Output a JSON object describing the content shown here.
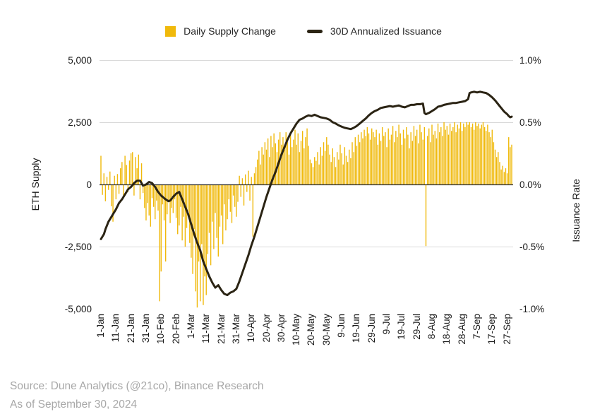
{
  "legend": {
    "bar_label": "Daily Supply Change",
    "line_label": "30D Annualized Issuance"
  },
  "left_axis": {
    "title": "ETH Supply",
    "ticks": [
      "5,000",
      "2,500",
      "0",
      "-2,500",
      "-5,000"
    ]
  },
  "right_axis": {
    "title": "Issuance Rate",
    "ticks": [
      "1.0%",
      "0.5%",
      "0.0%",
      "-0.5%",
      "-1.0%"
    ]
  },
  "footer": {
    "source": "Source: Dune Analytics (@21co), Binance Research",
    "as_of": "As of September 30, 2024"
  },
  "colors": {
    "bar": "#F0B90B",
    "line": "#2B2414",
    "grid": "#D9D9D9",
    "zero_line": "#333333",
    "axis_text": "#1A1A1A",
    "footer_text": "#A8A8A8"
  },
  "chart_data": {
    "type": "bar+line",
    "title": "",
    "xlabel": "",
    "left_ylabel": "ETH Supply",
    "right_ylabel": "Issuance Rate",
    "left_ylim": [
      -5000,
      5000
    ],
    "right_ylim": [
      -1.0,
      1.0
    ],
    "grid": true,
    "legend_position": "top-center",
    "x_tick_labels": [
      "1-Jan",
      "11-Jan",
      "21-Jan",
      "31-Jan",
      "10-Feb",
      "20-Feb",
      "1-Mar",
      "11-Mar",
      "21-Mar",
      "31-Mar",
      "10-Apr",
      "20-Apr",
      "30-Apr",
      "10-May",
      "20-May",
      "30-May",
      "9-Jun",
      "19-Jun",
      "29-Jun",
      "9-Jul",
      "19-Jul",
      "29-Jul",
      "8-Aug",
      "18-Aug",
      "28-Aug",
      "7-Sep",
      "17-Sep",
      "27-Sep"
    ],
    "x_tick_day_indices": [
      0,
      10,
      20,
      30,
      40,
      50,
      60,
      70,
      80,
      90,
      100,
      110,
      120,
      130,
      140,
      150,
      160,
      170,
      180,
      190,
      200,
      210,
      220,
      230,
      240,
      250,
      260,
      270
    ],
    "bar_series": {
      "name": "Daily Supply Change",
      "axis": "left",
      "unit": "ETH",
      "values": [
        1150,
        -420,
        450,
        -680,
        300,
        -220,
        520,
        -880,
        -1500,
        350,
        -600,
        420,
        -380,
        650,
        900,
        -520,
        1150,
        780,
        -300,
        960,
        1250,
        1300,
        -450,
        1100,
        650,
        1200,
        -600,
        850,
        -350,
        -950,
        -1450,
        -750,
        -1250,
        -1700,
        -550,
        -900,
        -1400,
        -650,
        -1050,
        -4700,
        -3500,
        -800,
        -1450,
        -3100,
        -1200,
        -700,
        -1550,
        -950,
        -1150,
        -600,
        -1350,
        -2000,
        -1650,
        -900,
        -2250,
        -1300,
        -2500,
        -1750,
        -1100,
        -2350,
        -2950,
        -3600,
        -1800,
        -4300,
        -4950,
        -3100,
        -4700,
        -2400,
        -4850,
        -3700,
        -4450,
        -2800,
        -1950,
        -3250,
        -1500,
        -2600,
        -1150,
        -2150,
        -2900,
        -1700,
        -1250,
        -2400,
        -800,
        -1850,
        -1400,
        -600,
        -1100,
        -1550,
        -450,
        -900,
        -1300,
        -700,
        350,
        -500,
        250,
        -850,
        400,
        -300,
        550,
        -650,
        300,
        -2100,
        450,
        700,
        1000,
        1350,
        800,
        1500,
        1200,
        1700,
        1400,
        1850,
        1100,
        1950,
        1500,
        2050,
        1650,
        1300,
        1800,
        2100,
        1600,
        1900,
        1400,
        2100,
        1700,
        1200,
        2000,
        1500,
        1800,
        2200,
        1600,
        2050,
        1300,
        1750,
        2150,
        1450,
        1900,
        2250,
        1550,
        1000,
        850,
        700,
        1100,
        950,
        1300,
        800,
        1500,
        1150,
        1700,
        1350,
        1900,
        1600,
        1200,
        900,
        1450,
        1100,
        700,
        1300,
        1000,
        1600,
        1250,
        800,
        1500,
        1150,
        900,
        1400,
        1050,
        1700,
        1300,
        1900,
        1550,
        2000,
        1700,
        2100,
        1850,
        2200,
        1950,
        2300,
        2050,
        1800,
        2250,
        2100,
        1900,
        2200,
        1600,
        2050,
        1750,
        2300,
        1950,
        2100,
        1500,
        2250,
        1800,
        2000,
        2350,
        1700,
        2150,
        1900,
        2400,
        2050,
        1600,
        2200,
        1850,
        2300,
        2000,
        1450,
        2100,
        1750,
        2350,
        1950,
        2200,
        1650,
        2400,
        2100,
        1800,
        2300,
        -2480,
        1950,
        2250,
        1700,
        2400,
        2000,
        2150,
        1850,
        2450,
        2100,
        2300,
        1950,
        2500,
        2200,
        2350,
        2000,
        2450,
        2150,
        2300,
        2500,
        2100,
        2400,
        2250,
        2500,
        2150,
        2450,
        2300,
        2500,
        2400,
        2500,
        2300,
        2450,
        2200,
        2500,
        2350,
        2450,
        2250,
        2400,
        2500,
        2300,
        2150,
        2400,
        2100,
        1900,
        2200,
        1700,
        1400,
        1100,
        1300,
        900,
        600,
        750,
        500,
        650,
        450,
        1900,
        1500,
        1600
      ]
    },
    "line_series": {
      "name": "30D Annualized Issuance",
      "axis": "right",
      "unit": "%",
      "points": [
        [
          0,
          -0.44
        ],
        [
          2,
          -0.4
        ],
        [
          3,
          -0.36
        ],
        [
          5,
          -0.3
        ],
        [
          7,
          -0.26
        ],
        [
          8,
          -0.24
        ],
        [
          10,
          -0.2
        ],
        [
          12,
          -0.15
        ],
        [
          14,
          -0.12
        ],
        [
          15,
          -0.1
        ],
        [
          17,
          -0.06
        ],
        [
          18,
          -0.04
        ],
        [
          20,
          -0.02
        ],
        [
          22,
          0.01
        ],
        [
          24,
          0.03
        ],
        [
          26,
          0.03
        ],
        [
          27,
          0.01
        ],
        [
          28,
          -0.01
        ],
        [
          30,
          0.0
        ],
        [
          32,
          0.02
        ],
        [
          34,
          0.01
        ],
        [
          36,
          -0.02
        ],
        [
          38,
          -0.06
        ],
        [
          40,
          -0.09
        ],
        [
          43,
          -0.12
        ],
        [
          45,
          -0.135
        ],
        [
          46,
          -0.13
        ],
        [
          48,
          -0.1
        ],
        [
          50,
          -0.075
        ],
        [
          52,
          -0.06
        ],
        [
          54,
          -0.12
        ],
        [
          56,
          -0.18
        ],
        [
          58,
          -0.24
        ],
        [
          60,
          -0.32
        ],
        [
          62,
          -0.4
        ],
        [
          64,
          -0.47
        ],
        [
          66,
          -0.53
        ],
        [
          68,
          -0.62
        ],
        [
          70,
          -0.68
        ],
        [
          72,
          -0.74
        ],
        [
          74,
          -0.79
        ],
        [
          76,
          -0.83
        ],
        [
          78,
          -0.81
        ],
        [
          80,
          -0.85
        ],
        [
          82,
          -0.88
        ],
        [
          84,
          -0.89
        ],
        [
          86,
          -0.87
        ],
        [
          88,
          -0.86
        ],
        [
          90,
          -0.84
        ],
        [
          92,
          -0.78
        ],
        [
          94,
          -0.71
        ],
        [
          96,
          -0.64
        ],
        [
          98,
          -0.57
        ],
        [
          100,
          -0.49
        ],
        [
          102,
          -0.42
        ],
        [
          104,
          -0.34
        ],
        [
          106,
          -0.26
        ],
        [
          108,
          -0.18
        ],
        [
          110,
          -0.1
        ],
        [
          112,
          -0.03
        ],
        [
          114,
          0.04
        ],
        [
          116,
          0.1
        ],
        [
          118,
          0.17
        ],
        [
          120,
          0.24
        ],
        [
          122,
          0.3
        ],
        [
          124,
          0.36
        ],
        [
          126,
          0.41
        ],
        [
          128,
          0.45
        ],
        [
          130,
          0.49
        ],
        [
          132,
          0.52
        ],
        [
          134,
          0.53
        ],
        [
          136,
          0.545
        ],
        [
          138,
          0.555
        ],
        [
          140,
          0.55
        ],
        [
          142,
          0.56
        ],
        [
          144,
          0.55
        ],
        [
          146,
          0.54
        ],
        [
          148,
          0.535
        ],
        [
          150,
          0.53
        ],
        [
          152,
          0.52
        ],
        [
          154,
          0.5
        ],
        [
          156,
          0.49
        ],
        [
          158,
          0.475
        ],
        [
          160,
          0.465
        ],
        [
          162,
          0.455
        ],
        [
          164,
          0.45
        ],
        [
          166,
          0.445
        ],
        [
          168,
          0.455
        ],
        [
          170,
          0.47
        ],
        [
          172,
          0.49
        ],
        [
          174,
          0.51
        ],
        [
          176,
          0.53
        ],
        [
          178,
          0.555
        ],
        [
          180,
          0.575
        ],
        [
          182,
          0.59
        ],
        [
          184,
          0.6
        ],
        [
          186,
          0.615
        ],
        [
          188,
          0.62
        ],
        [
          190,
          0.625
        ],
        [
          192,
          0.63
        ],
        [
          194,
          0.625
        ],
        [
          196,
          0.63
        ],
        [
          198,
          0.635
        ],
        [
          200,
          0.625
        ],
        [
          202,
          0.62
        ],
        [
          204,
          0.63
        ],
        [
          206,
          0.64
        ],
        [
          208,
          0.64
        ],
        [
          210,
          0.645
        ],
        [
          212,
          0.645
        ],
        [
          214,
          0.65
        ],
        [
          215,
          0.575
        ],
        [
          216,
          0.565
        ],
        [
          218,
          0.575
        ],
        [
          220,
          0.59
        ],
        [
          222,
          0.605
        ],
        [
          224,
          0.625
        ],
        [
          226,
          0.63
        ],
        [
          228,
          0.64
        ],
        [
          230,
          0.645
        ],
        [
          232,
          0.65
        ],
        [
          234,
          0.655
        ],
        [
          236,
          0.655
        ],
        [
          238,
          0.66
        ],
        [
          240,
          0.665
        ],
        [
          242,
          0.67
        ],
        [
          244,
          0.685
        ],
        [
          245,
          0.735
        ],
        [
          246,
          0.74
        ],
        [
          248,
          0.745
        ],
        [
          250,
          0.74
        ],
        [
          252,
          0.745
        ],
        [
          254,
          0.74
        ],
        [
          256,
          0.735
        ],
        [
          258,
          0.72
        ],
        [
          260,
          0.7
        ],
        [
          262,
          0.675
        ],
        [
          264,
          0.645
        ],
        [
          266,
          0.615
        ],
        [
          268,
          0.585
        ],
        [
          270,
          0.565
        ],
        [
          271,
          0.55
        ],
        [
          272,
          0.54
        ],
        [
          273,
          0.545
        ]
      ]
    }
  }
}
